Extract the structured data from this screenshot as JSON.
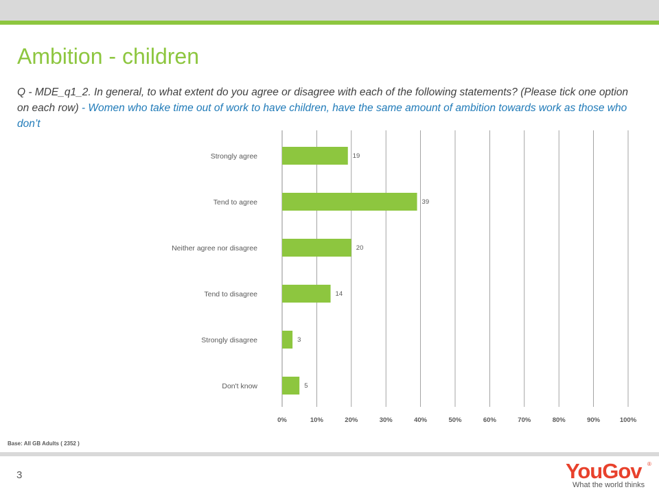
{
  "title": "Ambition - children",
  "question": {
    "prefix": "Q - MDE_q1_2. In general, to what extent do you agree or disagree with each of the following statements? (Please tick one option on each row)",
    "statement": " - Women who take time out of work to have children, have the same amount of ambition towards work as those who don’t"
  },
  "base_note": "Base: All GB Adults ( 2352 )",
  "page_number": "3",
  "logo": {
    "word": "YouGov",
    "registered": "®",
    "tagline": "What the world thinks"
  },
  "colors": {
    "accent": "#8dc63f",
    "bar": "#8dc63f",
    "statement": "#1f7ab8",
    "logo": "#e8412c",
    "grid": "#8c8c8c"
  },
  "chart_data": {
    "type": "bar",
    "orientation": "horizontal",
    "categories": [
      "Strongly agree",
      "Tend to agree",
      "Neither agree nor disagree",
      "Tend to disagree",
      "Strongly disagree",
      "Don't know"
    ],
    "values": [
      19,
      39,
      20,
      14,
      3,
      5
    ],
    "xlim": [
      0,
      100
    ],
    "x_ticks": [
      "0%",
      "10%",
      "20%",
      "30%",
      "40%",
      "50%",
      "60%",
      "70%",
      "80%",
      "90%",
      "100%"
    ],
    "grid": true,
    "legend": "none"
  }
}
